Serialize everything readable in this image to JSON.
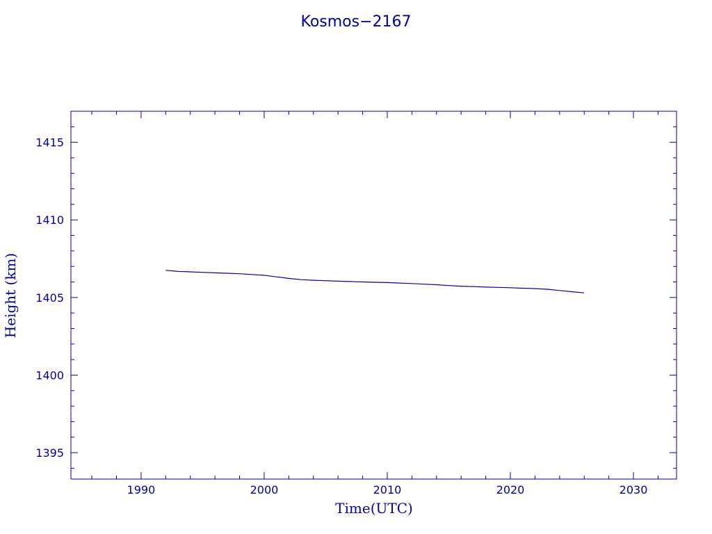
{
  "chart_data": {
    "type": "line",
    "title": "Kosmos−2167",
    "xlabel": "Time(UTC)",
    "ylabel": "Height (km)",
    "xlim": [
      1984.3,
      2033.5
    ],
    "ylim": [
      1393.3,
      1417.0
    ],
    "xticks": [
      1990,
      2000,
      2010,
      2020,
      2030
    ],
    "yticks": [
      1395,
      1400,
      1405,
      1410,
      1415
    ],
    "grid": false,
    "series": [
      {
        "x": [
          1992.0,
          1993.0,
          1994.0,
          1995.0,
          1996.0,
          1997.0,
          1998.0,
          1999.0,
          2000.0,
          2001.0,
          2002.0,
          2003.0,
          2004.0,
          2005.0,
          2006.0,
          2007.0,
          2008.0,
          2009.0,
          2010.0,
          2011.0,
          2012.0,
          2013.0,
          2014.0,
          2015.0,
          2016.0,
          2017.0,
          2018.0,
          2019.0,
          2020.0,
          2021.0,
          2022.0,
          2023.0,
          2024.0,
          2025.0,
          2026.0
        ],
        "y": [
          1406.75,
          1406.68,
          1406.65,
          1406.62,
          1406.59,
          1406.56,
          1406.53,
          1406.48,
          1406.43,
          1406.33,
          1406.23,
          1406.15,
          1406.11,
          1406.08,
          1406.05,
          1406.03,
          1406.0,
          1405.98,
          1405.96,
          1405.93,
          1405.9,
          1405.86,
          1405.82,
          1405.77,
          1405.73,
          1405.7,
          1405.67,
          1405.65,
          1405.63,
          1405.6,
          1405.57,
          1405.53,
          1405.45,
          1405.37,
          1405.3
        ]
      }
    ]
  },
  "colors": {
    "ink": "#0000a0"
  }
}
